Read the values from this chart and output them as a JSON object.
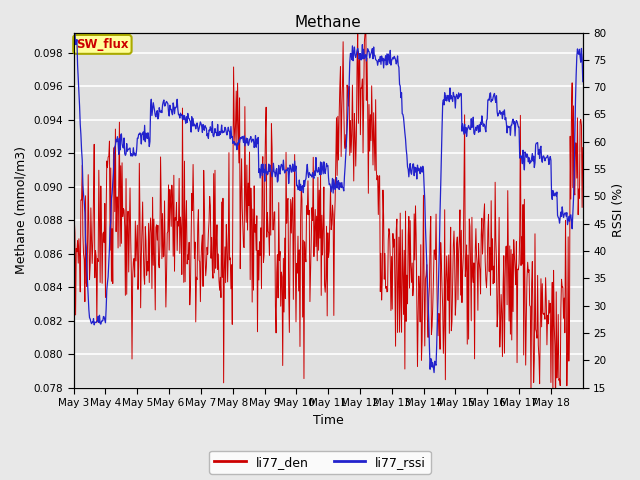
{
  "title": "Methane",
  "xlabel": "Time",
  "ylabel_left": "Methane (mmol/m3)",
  "ylabel_right": "RSSI (%)",
  "ylim_left": [
    0.078,
    0.0992
  ],
  "ylim_right": [
    15,
    80
  ],
  "yticks_left": [
    0.078,
    0.08,
    0.082,
    0.084,
    0.086,
    0.088,
    0.09,
    0.092,
    0.094,
    0.096,
    0.098
  ],
  "yticks_right": [
    15,
    20,
    25,
    30,
    35,
    40,
    45,
    50,
    55,
    60,
    65,
    70,
    75,
    80
  ],
  "xtick_labels": [
    "May 3",
    "May 4",
    "May 5",
    "May 6",
    "May 7",
    "May 8",
    "May 9",
    "May 10",
    "May 11",
    "May 12",
    "May 13",
    "May 14",
    "May 15",
    "May 16",
    "May 17",
    "May 18"
  ],
  "color_red": "#cc0000",
  "color_blue": "#2222cc",
  "legend_labels": [
    "li77_den",
    "li77_rssi"
  ],
  "sw_flux_label": "SW_flux",
  "background_color": "#e0e0e0",
  "grid_color": "#ffffff",
  "fig_facecolor": "#e8e8e8",
  "annotation_box_color": "#ffff99",
  "annotation_text_color": "#cc0000",
  "annotation_border_color": "#aaaa00"
}
